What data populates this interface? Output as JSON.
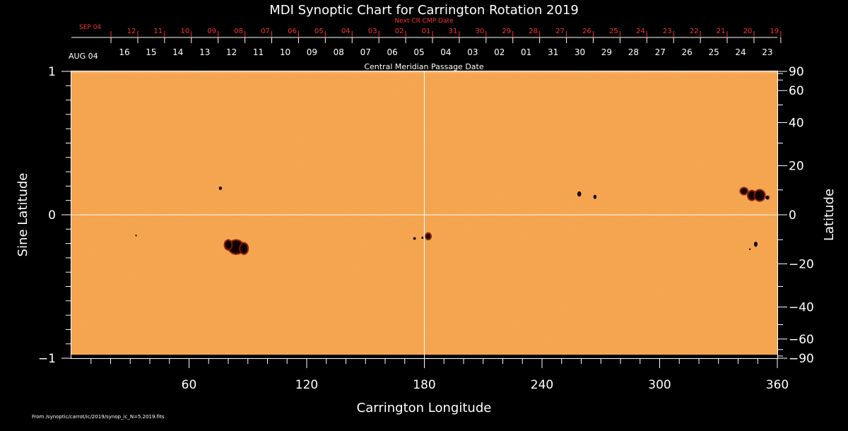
{
  "chart_data": {
    "type": "heatmap",
    "title": "MDI Synoptic Chart for Carrington Rotation 2019",
    "xlabel": "Carrington Longitude",
    "ylabel_left": "Sine Latitude",
    "ylabel_right": "Latitude",
    "xlim": [
      0,
      360
    ],
    "ylim": [
      -1,
      1
    ],
    "x_ticks": [
      60,
      120,
      180,
      240,
      300,
      360
    ],
    "x_minor_step": 10,
    "y_left_ticks": [
      {
        "value": 1,
        "label": "1"
      },
      {
        "value": 0,
        "label": "0"
      },
      {
        "value": -1,
        "label": "−1"
      }
    ],
    "y_left_minor_step": 0.1,
    "y_right_ticks": [
      {
        "deg": 90,
        "label": "90"
      },
      {
        "deg": 60,
        "label": "60"
      },
      {
        "deg": 40,
        "label": "40"
      },
      {
        "deg": 20,
        "label": "20"
      },
      {
        "deg": 0,
        "label": "0"
      },
      {
        "deg": -20,
        "label": "−20"
      },
      {
        "deg": -40,
        "label": "−40"
      },
      {
        "deg": -60,
        "label": "−60"
      },
      {
        "deg": -90,
        "label": "−90"
      }
    ],
    "y_right_minor_deg": [
      80,
      70,
      50,
      30,
      10,
      -10,
      -30,
      -50,
      -70,
      -80
    ],
    "crosshair": {
      "longitude": 180,
      "sine_latitude": 0
    },
    "top_axis_next": {
      "label": "Next CR CMP Date",
      "start_label": "SEP 04",
      "dates": [
        "12",
        "11",
        "10",
        "09",
        "08",
        "07",
        "06",
        "05",
        "04",
        "03",
        "02",
        "01",
        "31",
        "30",
        "29",
        "28",
        "27",
        "26",
        "25",
        "24",
        "23",
        "22",
        "21",
        "20",
        "19"
      ]
    },
    "top_axis_current": {
      "label": "Central Meridian Passage Date",
      "start_label": "AUG 04",
      "dates": [
        "16",
        "15",
        "14",
        "13",
        "12",
        "11",
        "10",
        "09",
        "08",
        "07",
        "06",
        "05",
        "04",
        "03",
        "02",
        "01",
        "31",
        "30",
        "29",
        "28",
        "27",
        "26",
        "25",
        "24",
        "23"
      ]
    },
    "sunspots": [
      {
        "lon": 84,
        "sinlat": -0.225,
        "rx": 3.6,
        "ry": 0.045
      },
      {
        "lon": 80,
        "sinlat": -0.21,
        "rx": 1.6,
        "ry": 0.03
      },
      {
        "lon": 88,
        "sinlat": -0.235,
        "rx": 1.8,
        "ry": 0.035
      },
      {
        "lon": 76,
        "sinlat": 0.185,
        "rx": 0.8,
        "ry": 0.012
      },
      {
        "lon": 33,
        "sinlat": -0.145,
        "rx": 0.4,
        "ry": 0.006
      },
      {
        "lon": 182,
        "sinlat": -0.15,
        "rx": 1.1,
        "ry": 0.018
      },
      {
        "lon": 175,
        "sinlat": -0.165,
        "rx": 0.7,
        "ry": 0.009
      },
      {
        "lon": 179,
        "sinlat": -0.16,
        "rx": 0.5,
        "ry": 0.008
      },
      {
        "lon": 259,
        "sinlat": 0.145,
        "rx": 1.0,
        "ry": 0.018
      },
      {
        "lon": 267,
        "sinlat": 0.125,
        "rx": 0.8,
        "ry": 0.015
      },
      {
        "lon": 347,
        "sinlat": 0.135,
        "rx": 1.8,
        "ry": 0.03
      },
      {
        "lon": 351,
        "sinlat": 0.135,
        "rx": 2.4,
        "ry": 0.035
      },
      {
        "lon": 343,
        "sinlat": 0.165,
        "rx": 1.6,
        "ry": 0.02
      },
      {
        "lon": 355,
        "sinlat": 0.12,
        "rx": 1.0,
        "ry": 0.014
      },
      {
        "lon": 349,
        "sinlat": -0.205,
        "rx": 0.9,
        "ry": 0.018
      },
      {
        "lon": 346,
        "sinlat": -0.24,
        "rx": 0.4,
        "ry": 0.006
      }
    ],
    "source_note": "From /synoptic/carrot/ic/2019/synop_ic_N=5.2019.fits"
  }
}
